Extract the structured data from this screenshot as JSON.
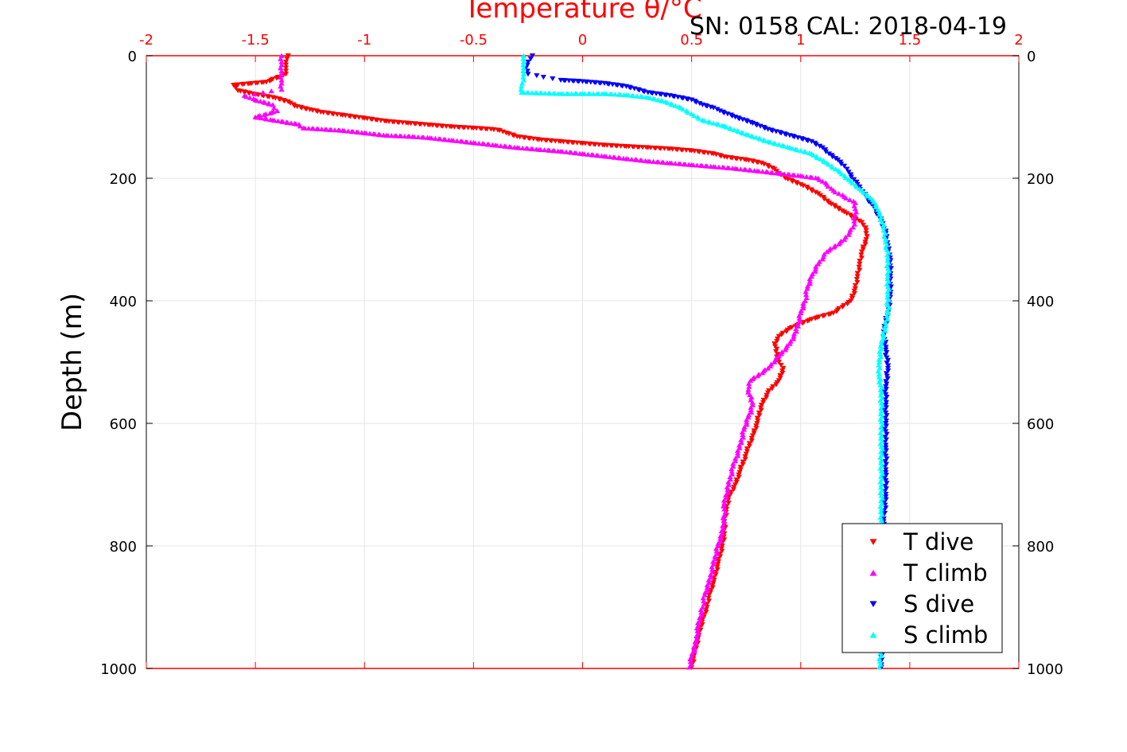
{
  "chart_data": {
    "type": "scatter",
    "title": "Temperature θ/°C",
    "subtitle": "SN: 0158  CAL: 2018-04-19",
    "ylabel": "Depth (m)",
    "xlim": [
      -2,
      2
    ],
    "ylim": [
      0,
      1000
    ],
    "y_reversed": true,
    "x_axis_position": "top",
    "x_ticks": [
      -2,
      -1.5,
      -1,
      -0.5,
      0,
      0.5,
      1,
      1.5,
      2
    ],
    "x_tick_labels": [
      "-2",
      "-1.5",
      "-1",
      "-0.5",
      "0",
      "0.5",
      "1",
      "1.5",
      "2"
    ],
    "y_ticks": [
      0,
      200,
      400,
      600,
      800,
      1000
    ],
    "y_tick_labels": [
      "0",
      "200",
      "400",
      "600",
      "800",
      "1000"
    ],
    "grid": true,
    "legend_position": "bottom-right",
    "colors": {
      "axis_top": "#ff0000",
      "axis": "#000000",
      "grid": "#e6e6e6"
    },
    "series": [
      {
        "name": "T dive",
        "color": "#ff0000",
        "marker": "triangle-down",
        "points": [
          [
            -1.35,
            0
          ],
          [
            -1.36,
            10
          ],
          [
            -1.36,
            20
          ],
          [
            -1.36,
            30
          ],
          [
            -1.45,
            43
          ],
          [
            -1.6,
            48
          ],
          [
            -1.58,
            57
          ],
          [
            -1.5,
            63
          ],
          [
            -1.42,
            68
          ],
          [
            -1.35,
            75
          ],
          [
            -1.32,
            82
          ],
          [
            -1.25,
            88
          ],
          [
            -1.2,
            92
          ],
          [
            -1.1,
            97
          ],
          [
            -1.0,
            102
          ],
          [
            -0.9,
            107
          ],
          [
            -0.8,
            110
          ],
          [
            -0.7,
            113
          ],
          [
            -0.6,
            116
          ],
          [
            -0.5,
            118
          ],
          [
            -0.42,
            120
          ],
          [
            -0.38,
            122
          ],
          [
            -0.35,
            126
          ],
          [
            -0.3,
            132
          ],
          [
            -0.2,
            137
          ],
          [
            -0.1,
            140
          ],
          [
            0.0,
            143
          ],
          [
            0.1,
            146
          ],
          [
            0.2,
            148
          ],
          [
            0.3,
            150
          ],
          [
            0.4,
            152
          ],
          [
            0.5,
            155
          ],
          [
            0.6,
            160
          ],
          [
            0.65,
            165
          ],
          [
            0.75,
            170
          ],
          [
            0.82,
            175
          ],
          [
            0.88,
            185
          ],
          [
            0.9,
            192
          ],
          [
            0.93,
            200
          ],
          [
            1.0,
            210
          ],
          [
            1.08,
            225
          ],
          [
            1.13,
            240
          ],
          [
            1.2,
            255
          ],
          [
            1.28,
            272
          ],
          [
            1.3,
            285
          ],
          [
            1.3,
            300
          ],
          [
            1.28,
            320
          ],
          [
            1.27,
            340
          ],
          [
            1.26,
            360
          ],
          [
            1.25,
            380
          ],
          [
            1.23,
            400
          ],
          [
            1.15,
            420
          ],
          [
            1.05,
            430
          ],
          [
            0.95,
            445
          ],
          [
            0.9,
            458
          ],
          [
            0.88,
            470
          ],
          [
            0.9,
            500
          ],
          [
            0.92,
            510
          ],
          [
            0.9,
            530
          ],
          [
            0.85,
            550
          ],
          [
            0.82,
            570
          ],
          [
            0.8,
            600
          ],
          [
            0.78,
            620
          ],
          [
            0.75,
            650
          ],
          [
            0.72,
            680
          ],
          [
            0.7,
            700
          ],
          [
            0.67,
            720
          ],
          [
            0.66,
            740
          ],
          [
            0.65,
            760
          ],
          [
            0.65,
            780
          ],
          [
            0.64,
            800
          ],
          [
            0.62,
            830
          ],
          [
            0.6,
            860
          ],
          [
            0.58,
            880
          ],
          [
            0.57,
            900
          ],
          [
            0.55,
            920
          ],
          [
            0.53,
            950
          ],
          [
            0.51,
            980
          ],
          [
            0.5,
            998
          ]
        ]
      },
      {
        "name": "T climb",
        "color": "#ff00ff",
        "marker": "triangle-up",
        "points": [
          [
            -1.38,
            0
          ],
          [
            -1.38,
            15
          ],
          [
            -1.38,
            30
          ],
          [
            -1.38,
            45
          ],
          [
            -1.38,
            55
          ],
          [
            -1.55,
            65
          ],
          [
            -1.5,
            72
          ],
          [
            -1.42,
            80
          ],
          [
            -1.4,
            90
          ],
          [
            -1.5,
            100
          ],
          [
            -1.42,
            105
          ],
          [
            -1.3,
            112
          ],
          [
            -1.28,
            118
          ],
          [
            -1.1,
            122
          ],
          [
            -1.0,
            126
          ],
          [
            -0.9,
            130
          ],
          [
            -0.78,
            132
          ],
          [
            -0.7,
            134
          ],
          [
            -0.6,
            138
          ],
          [
            -0.5,
            142
          ],
          [
            -0.4,
            146
          ],
          [
            -0.3,
            150
          ],
          [
            -0.2,
            153
          ],
          [
            -0.1,
            156
          ],
          [
            0.0,
            160
          ],
          [
            0.1,
            164
          ],
          [
            0.2,
            168
          ],
          [
            0.3,
            172
          ],
          [
            0.4,
            175
          ],
          [
            0.5,
            178
          ],
          [
            0.6,
            181
          ],
          [
            0.7,
            184
          ],
          [
            0.8,
            188
          ],
          [
            0.9,
            192
          ],
          [
            1.0,
            196
          ],
          [
            1.08,
            200
          ],
          [
            1.12,
            210
          ],
          [
            1.15,
            220
          ],
          [
            1.2,
            230
          ],
          [
            1.25,
            240
          ],
          [
            1.25,
            260
          ],
          [
            1.24,
            280
          ],
          [
            1.2,
            300
          ],
          [
            1.12,
            320
          ],
          [
            1.08,
            340
          ],
          [
            1.05,
            360
          ],
          [
            1.03,
            380
          ],
          [
            1.02,
            400
          ],
          [
            1.0,
            420
          ],
          [
            0.98,
            450
          ],
          [
            0.95,
            470
          ],
          [
            0.9,
            490
          ],
          [
            0.85,
            510
          ],
          [
            0.77,
            530
          ],
          [
            0.76,
            545
          ],
          [
            0.78,
            570
          ],
          [
            0.76,
            590
          ],
          [
            0.74,
            610
          ],
          [
            0.72,
            640
          ],
          [
            0.69,
            670
          ],
          [
            0.67,
            700
          ],
          [
            0.65,
            730
          ],
          [
            0.65,
            750
          ],
          [
            0.64,
            780
          ],
          [
            0.62,
            800
          ],
          [
            0.6,
            830
          ],
          [
            0.58,
            860
          ],
          [
            0.56,
            880
          ],
          [
            0.55,
            900
          ],
          [
            0.53,
            930
          ],
          [
            0.52,
            960
          ],
          [
            0.5,
            980
          ],
          [
            0.49,
            998
          ]
        ]
      },
      {
        "name": "S dive",
        "color": "#0000ff",
        "marker": "triangle-down",
        "points": [
          [
            -0.23,
            0
          ],
          [
            -0.25,
            10
          ],
          [
            -0.26,
            20
          ],
          [
            -0.25,
            30
          ],
          [
            -0.1,
            40
          ],
          [
            0.0,
            42
          ],
          [
            0.1,
            45
          ],
          [
            0.2,
            50
          ],
          [
            0.3,
            60
          ],
          [
            0.4,
            65
          ],
          [
            0.5,
            72
          ],
          [
            0.55,
            80
          ],
          [
            0.6,
            85
          ],
          [
            0.63,
            90
          ],
          [
            0.7,
            100
          ],
          [
            0.78,
            110
          ],
          [
            0.85,
            120
          ],
          [
            0.95,
            130
          ],
          [
            1.05,
            140
          ],
          [
            1.1,
            150
          ],
          [
            1.13,
            160
          ],
          [
            1.17,
            170
          ],
          [
            1.2,
            180
          ],
          [
            1.22,
            190
          ],
          [
            1.26,
            210
          ],
          [
            1.3,
            230
          ],
          [
            1.34,
            250
          ],
          [
            1.37,
            270
          ],
          [
            1.39,
            290
          ],
          [
            1.4,
            310
          ],
          [
            1.41,
            330
          ],
          [
            1.41,
            360
          ],
          [
            1.41,
            390
          ],
          [
            1.4,
            420
          ],
          [
            1.38,
            450
          ],
          [
            1.39,
            480
          ],
          [
            1.4,
            510
          ],
          [
            1.39,
            540
          ],
          [
            1.39,
            570
          ],
          [
            1.39,
            600
          ],
          [
            1.39,
            640
          ],
          [
            1.39,
            680
          ],
          [
            1.39,
            720
          ],
          [
            1.38,
            760
          ],
          [
            1.38,
            800
          ],
          [
            1.38,
            840
          ],
          [
            1.38,
            880
          ],
          [
            1.38,
            920
          ],
          [
            1.37,
            960
          ],
          [
            1.37,
            998
          ]
        ]
      },
      {
        "name": "S climb",
        "color": "#00ffff",
        "marker": "triangle-up",
        "points": [
          [
            -0.27,
            0
          ],
          [
            -0.27,
            10
          ],
          [
            -0.27,
            20
          ],
          [
            -0.27,
            30
          ],
          [
            -0.27,
            40
          ],
          [
            -0.28,
            50
          ],
          [
            -0.28,
            60
          ],
          [
            -0.1,
            62
          ],
          [
            0.0,
            62
          ],
          [
            0.1,
            62
          ],
          [
            0.2,
            64
          ],
          [
            0.3,
            68
          ],
          [
            0.38,
            75
          ],
          [
            0.45,
            85
          ],
          [
            0.5,
            95
          ],
          [
            0.55,
            105
          ],
          [
            0.65,
            115
          ],
          [
            0.75,
            128
          ],
          [
            0.85,
            140
          ],
          [
            0.95,
            150
          ],
          [
            1.05,
            160
          ],
          [
            1.12,
            175
          ],
          [
            1.18,
            190
          ],
          [
            1.23,
            205
          ],
          [
            1.28,
            220
          ],
          [
            1.33,
            235
          ],
          [
            1.36,
            255
          ],
          [
            1.38,
            280
          ],
          [
            1.39,
            300
          ],
          [
            1.4,
            330
          ],
          [
            1.4,
            360
          ],
          [
            1.4,
            390
          ],
          [
            1.4,
            420
          ],
          [
            1.39,
            440
          ],
          [
            1.37,
            470
          ],
          [
            1.36,
            500
          ],
          [
            1.36,
            520
          ],
          [
            1.37,
            550
          ],
          [
            1.37,
            580
          ],
          [
            1.37,
            620
          ],
          [
            1.37,
            660
          ],
          [
            1.37,
            700
          ],
          [
            1.37,
            740
          ],
          [
            1.37,
            780
          ],
          [
            1.37,
            820
          ],
          [
            1.37,
            860
          ],
          [
            1.37,
            900
          ],
          [
            1.37,
            940
          ],
          [
            1.37,
            970
          ],
          [
            1.36,
            998
          ]
        ]
      }
    ]
  }
}
